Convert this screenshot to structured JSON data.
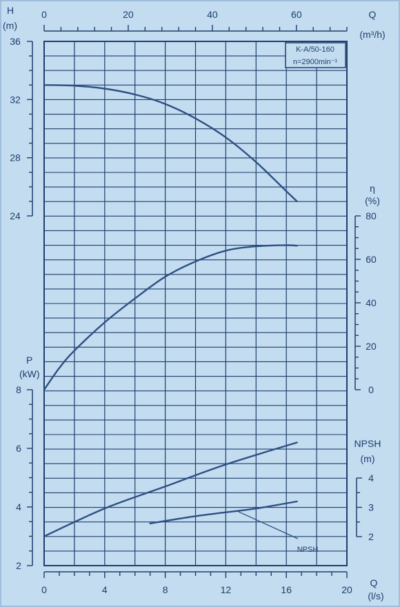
{
  "chart_data": {
    "type": "line",
    "model": "K-A/50-160",
    "speed": "n=2900min⁻¹",
    "colors": {
      "background": "#c3dcf0",
      "ink": "#1e3e6c",
      "curve": "#2d4f82"
    },
    "grid": true,
    "axes": {
      "q_m3h": {
        "symbol": "Q",
        "unit": "(m³/h)",
        "range": [
          0,
          72
        ],
        "ticks": [
          "0",
          "20",
          "40",
          "60"
        ]
      },
      "q_ls": {
        "symbol": "Q",
        "unit": "(l/s)",
        "range": [
          0,
          20
        ],
        "ticks": [
          "0",
          "4",
          "8",
          "12",
          "16",
          "20"
        ]
      },
      "head": {
        "symbol": "H",
        "unit": "(m)",
        "range": [
          24,
          36
        ],
        "ticks": [
          "24",
          "28",
          "32",
          "36"
        ]
      },
      "efficiency": {
        "symbol": "η",
        "unit": "(%)",
        "range": [
          0,
          80
        ],
        "ticks": [
          "0",
          "20",
          "40",
          "60",
          "80"
        ]
      },
      "power": {
        "symbol": "P",
        "unit": "(kW)",
        "range": [
          2,
          8
        ],
        "ticks": [
          "2",
          "4",
          "6",
          "8"
        ]
      },
      "npsh": {
        "symbol": "NPSH",
        "unit": "(m)",
        "range": [
          2,
          4
        ],
        "ticks": [
          "2",
          "3",
          "4"
        ]
      }
    },
    "series": [
      {
        "key": "head",
        "axis": "head",
        "x_ls": [
          0,
          2,
          4,
          6,
          8,
          10,
          12,
          14,
          16,
          16.7
        ],
        "y": [
          33.0,
          32.95,
          32.75,
          32.35,
          31.7,
          30.7,
          29.4,
          27.7,
          25.7,
          25.0
        ]
      },
      {
        "key": "efficiency",
        "axis": "efficiency",
        "x_ls": [
          0,
          1,
          2,
          4,
          6,
          8,
          10,
          12,
          14,
          16,
          16.7
        ],
        "y": [
          0,
          10,
          18,
          31,
          42,
          52,
          59,
          64,
          66,
          66.5,
          66.3
        ]
      },
      {
        "key": "power",
        "axis": "power",
        "x_ls": [
          0,
          4,
          8,
          12,
          16.7
        ],
        "y": [
          3.0,
          3.95,
          4.7,
          5.45,
          6.2
        ]
      },
      {
        "key": "npsh",
        "label": "NPSH",
        "axis": "npsh",
        "x_ls": [
          7,
          10,
          12,
          14,
          16.7
        ],
        "y": [
          2.45,
          2.7,
          2.83,
          2.96,
          3.2
        ]
      }
    ]
  }
}
